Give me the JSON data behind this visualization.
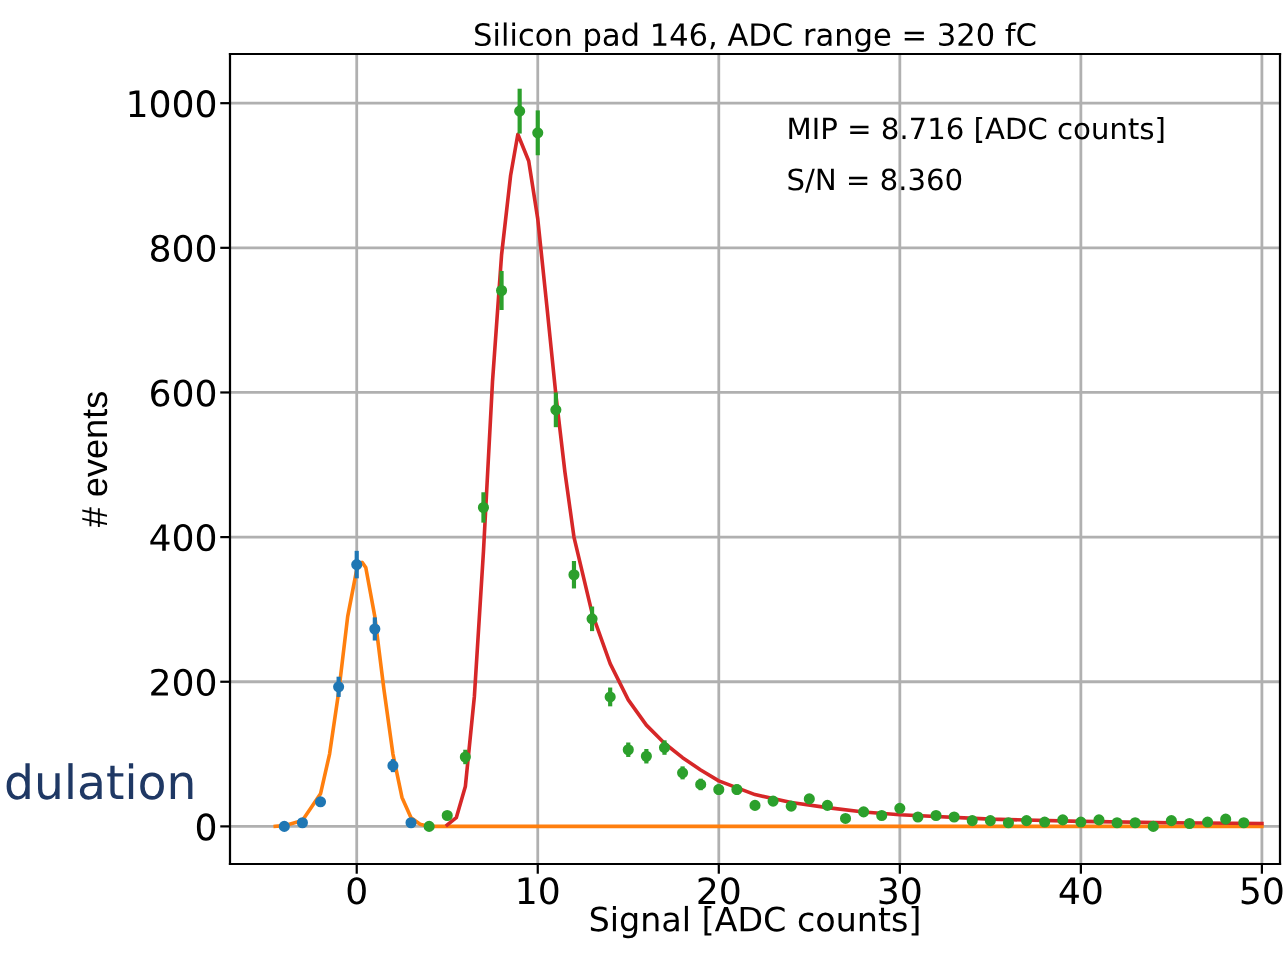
{
  "chart_data": {
    "type": "scatter",
    "title": "Silicon pad 146, ADC range = 320 fC",
    "xlabel": "Signal [ADC counts]",
    "ylabel": "# events",
    "annotations": [
      "MIP = 8.716 [ADC counts]",
      "S/N = 8.360",
      "dulation"
    ],
    "xlim": [
      -7,
      51
    ],
    "ylim": [
      -52,
      1068
    ],
    "xticks": [
      0,
      10,
      20,
      30,
      40,
      50
    ],
    "yticks": [
      0,
      200,
      400,
      600,
      800,
      1000
    ],
    "grid": true,
    "legend": false,
    "marker": "circle",
    "series": [
      {
        "color": "#1f77b4",
        "x": [
          -4,
          -3,
          -2,
          -1,
          0,
          1,
          2,
          3
        ],
        "values": [
          0,
          5,
          34,
          193,
          362,
          273,
          84,
          5
        ],
        "errors": [
          null,
          2,
          6,
          14,
          19,
          16,
          9,
          2
        ]
      },
      {
        "type": "line",
        "color": "#ff7f0e",
        "marker": "none",
        "x": [
          -4.5,
          -4,
          -3,
          -2,
          -1.5,
          -1,
          -0.5,
          0,
          0.3,
          0.5,
          1,
          1.5,
          2,
          2.5,
          3,
          3.5,
          4,
          50
        ],
        "values": [
          0,
          1,
          8,
          45,
          100,
          185,
          290,
          355,
          365,
          358,
          290,
          190,
          100,
          40,
          12,
          3,
          0,
          0
        ]
      },
      {
        "color": "#2ca02c",
        "x": [
          4,
          5,
          6,
          7,
          8,
          9,
          10,
          11,
          12,
          13,
          14,
          15,
          16,
          17,
          18,
          19,
          20,
          21,
          22,
          23,
          24,
          25,
          26,
          27,
          28,
          29,
          30,
          31,
          32,
          33,
          34,
          35,
          36,
          37,
          38,
          39,
          40,
          41,
          42,
          43,
          44,
          45,
          46,
          47,
          48,
          49
        ],
        "values": [
          0,
          15,
          96,
          441,
          741,
          989,
          959,
          576,
          348,
          287,
          179,
          106,
          97,
          109,
          74,
          58,
          51,
          51,
          29,
          35,
          28,
          38,
          29,
          11,
          20,
          15,
          25,
          13,
          15,
          13,
          8,
          8,
          5,
          8,
          6,
          9,
          6,
          9,
          5,
          5,
          0,
          8,
          4,
          6,
          10,
          5
        ],
        "errors": [
          null,
          4,
          10,
          21,
          27,
          31,
          31,
          24,
          19,
          17,
          13,
          10,
          10,
          10,
          9,
          8,
          7,
          7,
          5,
          6,
          5,
          6,
          5,
          3,
          4,
          4,
          5,
          4,
          4,
          4,
          3,
          3,
          2,
          3,
          2,
          3,
          2,
          3,
          2,
          2,
          null,
          3,
          2,
          2,
          3,
          2
        ]
      },
      {
        "type": "line",
        "color": "#d62728",
        "marker": "none",
        "x": [
          5,
          5.5,
          6,
          6.5,
          7,
          7.5,
          8,
          8.5,
          8.9,
          9.5,
          10,
          10.5,
          11,
          11.5,
          12,
          13,
          14,
          15,
          16,
          17,
          18,
          19,
          20,
          22,
          24,
          26,
          28,
          30,
          35,
          40,
          45,
          50
        ],
        "values": [
          2,
          12,
          55,
          180,
          380,
          615,
          790,
          900,
          957,
          920,
          840,
          720,
          597,
          490,
          400,
          295,
          225,
          175,
          140,
          115,
          95,
          78,
          63,
          44,
          33,
          26,
          20,
          16,
          10,
          7,
          5,
          4
        ]
      }
    ]
  }
}
